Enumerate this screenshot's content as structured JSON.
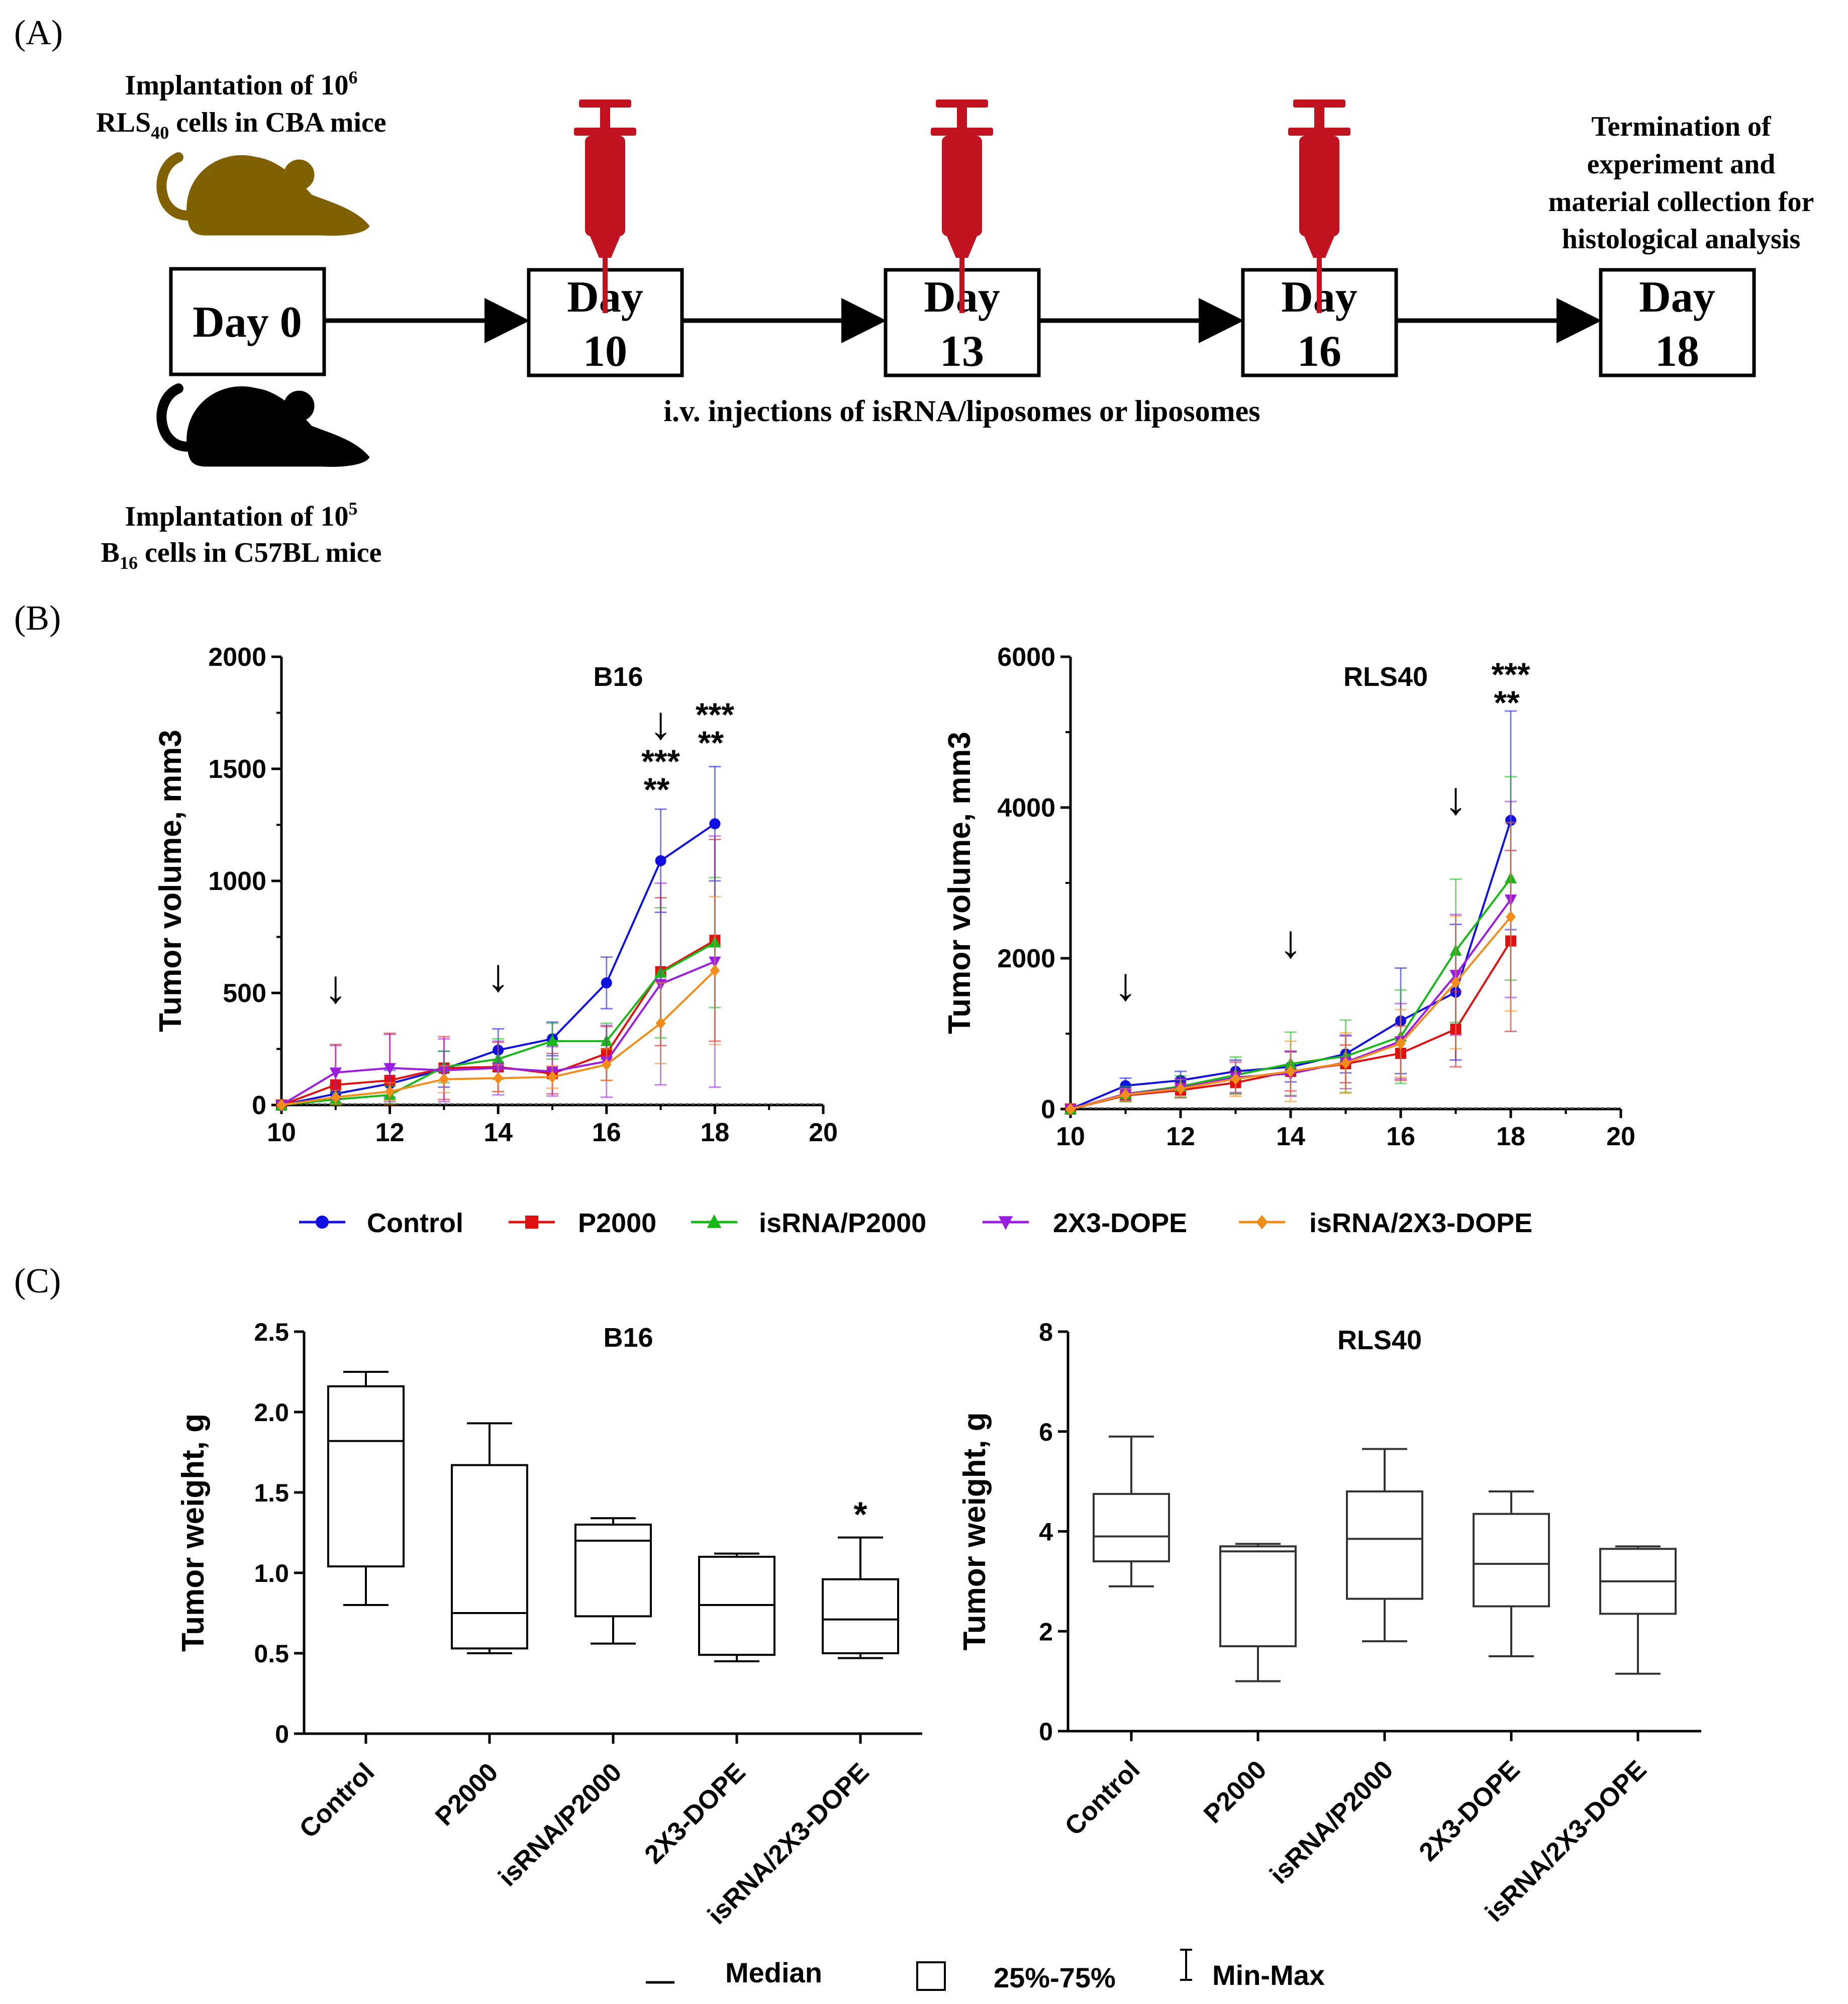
{
  "panel_labels": {
    "a": "(A)",
    "b": "(B)",
    "c": "(C)"
  },
  "timeline": {
    "top_note": {
      "line1": "Implantation  of 10",
      "line1_sup": "6",
      "line2_pre": "RLS",
      "line2_sub": "40",
      "line2_post": " cells in CBA mice"
    },
    "bottom_note": {
      "line1": "Implantation  of 10",
      "line1_sup": "5",
      "line2_pre": "B",
      "line2_sub": "16",
      "line2_post": " cells in C57BL mice"
    },
    "days": [
      {
        "line1": "Day 0",
        "line2": ""
      },
      {
        "line1": "Day",
        "line2": "10"
      },
      {
        "line1": "Day",
        "line2": "13"
      },
      {
        "line1": "Day",
        "line2": "16"
      },
      {
        "line1": "Day",
        "line2": "18"
      }
    ],
    "injection_note": "i.v. injections of isRNA/liposomes  or liposomes",
    "end_note": [
      "Termination  of",
      "experiment  and",
      "material collection for",
      "histological  analysis"
    ],
    "colors": {
      "syringe": "#c1121f",
      "mouse_top": "#806000",
      "mouse_bottom": "#000000"
    },
    "icons": {
      "syringe": "syringe-icon",
      "mouse": "mouse-icon"
    }
  },
  "legend_b": {
    "series": [
      {
        "name": "Control",
        "color": "#1010e0",
        "marker": "circle"
      },
      {
        "name": "P2000",
        "color": "#e01010",
        "marker": "square"
      },
      {
        "name": "isRNA/P2000",
        "color": "#18b818",
        "marker": "triangle-up"
      },
      {
        "name": "2X3-DOPE",
        "color": "#9b1ee0",
        "marker": "triangle-down"
      },
      {
        "name": "isRNA/2X3-DOPE",
        "color": "#f28c1a",
        "marker": "diamond"
      }
    ]
  },
  "legend_c": {
    "median": "Median",
    "box": "25%-75%",
    "whisker": "Min-Max"
  },
  "chart_data": [
    {
      "type": "line",
      "title": "B16",
      "ylabel": "Tumor volume, mm3",
      "xlabel": "",
      "xlim": [
        10,
        20
      ],
      "ylim": [
        0,
        2000
      ],
      "xticks": [
        "10",
        "12",
        "14",
        "16",
        "18",
        "20"
      ],
      "yticks": [
        "0",
        "500",
        "1000",
        "1500",
        "2000"
      ],
      "injection_arrow_days": [
        11,
        14,
        17
      ],
      "arrow_glyph": "↓",
      "significance": [
        {
          "x": 17,
          "labels": [
            "***",
            "**"
          ]
        },
        {
          "x": 18,
          "labels": [
            "***",
            "**"
          ]
        }
      ],
      "x": [
        10,
        11,
        12,
        13,
        14,
        15,
        16,
        17,
        18
      ],
      "series": [
        {
          "name": "Control",
          "values": [
            0,
            50,
            95,
            160,
            245,
            295,
            545,
            1090,
            1255
          ],
          "errors": [
            0,
            40,
            60,
            80,
            95,
            75,
            115,
            230,
            255
          ]
        },
        {
          "name": "P2000",
          "values": [
            0,
            90,
            110,
            165,
            170,
            140,
            230,
            595,
            735
          ],
          "errors": [
            0,
            180,
            210,
            140,
            110,
            90,
            120,
            330,
            450
          ]
        },
        {
          "name": "isRNA/P2000",
          "values": [
            0,
            25,
            45,
            170,
            205,
            285,
            285,
            590,
            725
          ],
          "errors": [
            0,
            30,
            40,
            70,
            90,
            80,
            80,
            290,
            290
          ]
        },
        {
          "name": "2X3-DOPE",
          "values": [
            0,
            145,
            165,
            155,
            165,
            150,
            195,
            540,
            640
          ],
          "errors": [
            0,
            120,
            150,
            140,
            120,
            110,
            160,
            450,
            560
          ]
        },
        {
          "name": "isRNA/2X3-DOPE",
          "values": [
            0,
            35,
            60,
            115,
            120,
            125,
            180,
            365,
            600
          ],
          "errors": [
            0,
            30,
            40,
            60,
            60,
            50,
            70,
            180,
            330
          ]
        }
      ]
    },
    {
      "type": "line",
      "title": "RLS40",
      "ylabel": "Tumor volume, mm3",
      "xlabel": "",
      "xlim": [
        10,
        20
      ],
      "ylim": [
        0,
        6000
      ],
      "xticks": [
        "10",
        "12",
        "14",
        "16",
        "18",
        "20"
      ],
      "yticks": [
        "0",
        "2000",
        "4000",
        "6000"
      ],
      "injection_arrow_days": [
        11,
        14,
        17
      ],
      "arrow_glyph": "↓",
      "significance": [
        {
          "x": 18,
          "labels": [
            "***",
            "**"
          ]
        }
      ],
      "x": [
        10,
        11,
        12,
        13,
        14,
        15,
        16,
        17,
        18
      ],
      "series": [
        {
          "name": "Control",
          "values": [
            0,
            310,
            380,
            500,
            560,
            730,
            1170,
            1550,
            3830
          ],
          "errors": [
            0,
            100,
            120,
            150,
            200,
            250,
            700,
            900,
            1450
          ]
        },
        {
          "name": "P2000",
          "values": [
            0,
            180,
            250,
            350,
            500,
            600,
            740,
            1060,
            2230
          ],
          "errors": [
            0,
            80,
            100,
            150,
            260,
            250,
            360,
            500,
            1200
          ]
        },
        {
          "name": "isRNA/P2000",
          "values": [
            0,
            200,
            300,
            450,
            600,
            700,
            960,
            2100,
            3060
          ],
          "errors": [
            0,
            100,
            140,
            240,
            420,
            480,
            620,
            950,
            1350
          ]
        },
        {
          "name": "2X3-DOPE",
          "values": [
            0,
            200,
            280,
            420,
            470,
            620,
            900,
            1780,
            2780
          ],
          "errors": [
            0,
            80,
            130,
            200,
            300,
            350,
            500,
            800,
            1300
          ]
        },
        {
          "name": "isRNA/2X3-DOPE",
          "values": [
            0,
            190,
            270,
            400,
            500,
            610,
            870,
            1680,
            2550
          ],
          "errors": [
            0,
            80,
            120,
            230,
            400,
            400,
            450,
            880,
            1250
          ]
        }
      ]
    },
    {
      "type": "box",
      "title": "B16",
      "ylabel": "Tumor weight, g",
      "ylim": [
        0,
        2.5
      ],
      "yticks": [
        "0",
        "0.5",
        "1.0",
        "1.5",
        "2.0",
        "2.5"
      ],
      "categories": [
        "Control",
        "P2000",
        "isRNA/P2000",
        "2X3-DOPE",
        "isRNA/2X3-DOPE"
      ],
      "boxes": [
        {
          "min": 0.8,
          "q1": 1.04,
          "median": 1.82,
          "q3": 2.16,
          "max": 2.25
        },
        {
          "min": 0.5,
          "q1": 0.53,
          "median": 0.75,
          "q3": 1.67,
          "max": 1.93
        },
        {
          "min": 0.56,
          "q1": 0.73,
          "median": 1.2,
          "q3": 1.3,
          "max": 1.34
        },
        {
          "min": 0.45,
          "q1": 0.49,
          "median": 0.8,
          "q3": 1.1,
          "max": 1.12
        },
        {
          "min": 0.47,
          "q1": 0.5,
          "median": 0.71,
          "q3": 0.96,
          "max": 1.22
        }
      ],
      "significance": [
        {
          "category": "isRNA/2X3-DOPE",
          "label": "*"
        }
      ]
    },
    {
      "type": "box",
      "title": "RLS40",
      "ylabel": "Tumor weight, g",
      "ylim": [
        0,
        8
      ],
      "yticks": [
        "0",
        "2",
        "4",
        "6",
        "8"
      ],
      "categories": [
        "Control",
        "P2000",
        "isRNA/P2000",
        "2X3-DOPE",
        "isRNA/2X3-DOPE"
      ],
      "boxes": [
        {
          "min": 2.9,
          "q1": 3.4,
          "median": 3.9,
          "q3": 4.75,
          "max": 5.9
        },
        {
          "min": 1.0,
          "q1": 1.7,
          "median": 3.6,
          "q3": 3.7,
          "max": 3.75
        },
        {
          "min": 1.8,
          "q1": 2.65,
          "median": 3.85,
          "q3": 4.8,
          "max": 5.65
        },
        {
          "min": 1.5,
          "q1": 2.5,
          "median": 3.35,
          "q3": 4.35,
          "max": 4.8
        },
        {
          "min": 1.15,
          "q1": 2.35,
          "median": 3.0,
          "q3": 3.65,
          "max": 3.7
        }
      ],
      "significance": []
    }
  ]
}
